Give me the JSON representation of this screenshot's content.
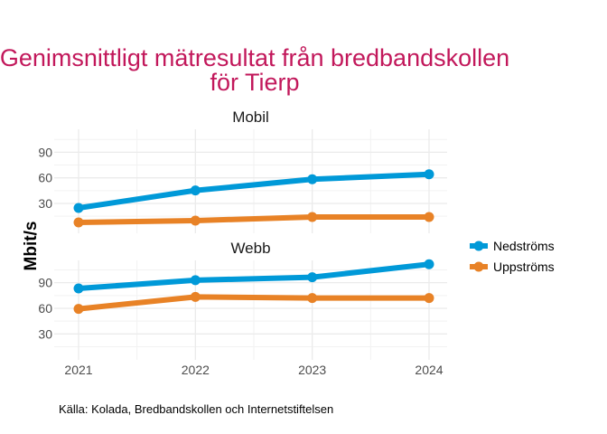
{
  "chart_data": {
    "type": "line",
    "title": "Genimsnittligt mätresultat från bredbandskollen",
    "title_line2": "för Tierp",
    "ylabel": "Mbit/s",
    "xlabel": "",
    "x": [
      "2021",
      "2022",
      "2023",
      "2024"
    ],
    "yticks": [
      "30",
      "60",
      "90"
    ],
    "legend_position": "right",
    "caption": "Källa: Kolada, Bredbandskollen och Internetstiftelsen",
    "colors": {
      "Nedströms": "#0099d8",
      "Uppströms": "#e88226",
      "title": "#c2185b"
    },
    "legend": [
      "Nedströms",
      "Uppströms"
    ],
    "panels": [
      {
        "name": "Mobil",
        "ylim": [
          5,
          112
        ],
        "series": [
          {
            "name": "Nedströms",
            "values": [
              24.7,
              45.2,
              58.3,
              64.2
            ]
          },
          {
            "name": "Uppströms",
            "values": [
              7.8,
              9.9,
              14.1,
              14.1
            ]
          }
        ]
      },
      {
        "name": "Webb",
        "ylim": [
          5,
          112
        ],
        "series": [
          {
            "name": "Nedströms",
            "values": [
              83.3,
              92.9,
              96.4,
              111.6
            ]
          },
          {
            "name": "Uppströms",
            "values": [
              59.3,
              73.4,
              72.0,
              72.0
            ]
          }
        ]
      }
    ]
  }
}
